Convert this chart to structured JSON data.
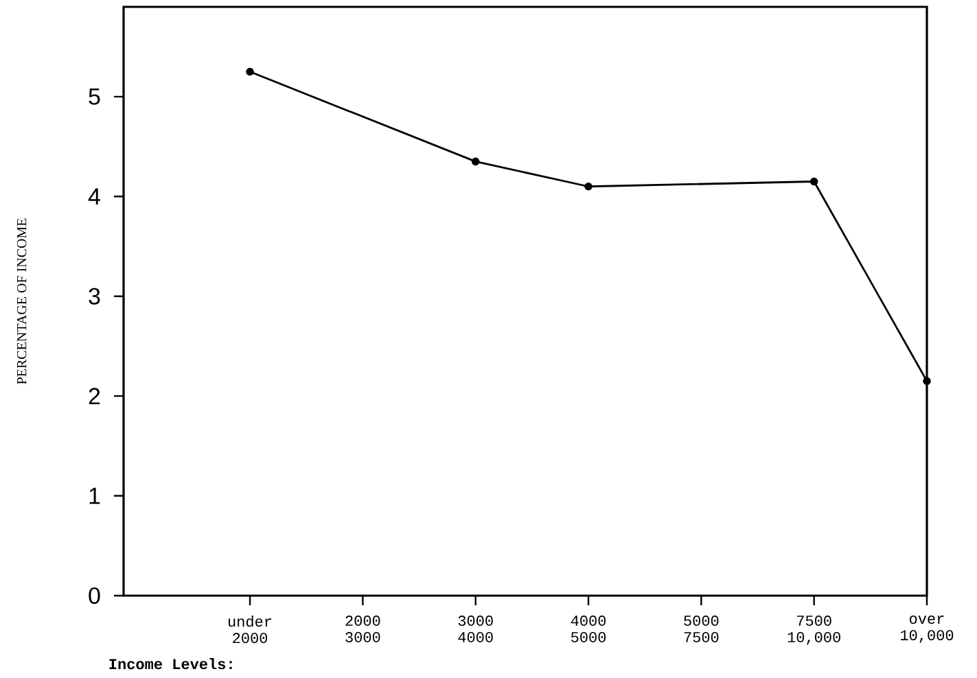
{
  "chart_data": {
    "type": "line",
    "ylabel": "PERCENTAGE OF INCOME",
    "xlabel": "Income Levels:",
    "categories": [
      "under 2000",
      "2000 3000",
      "3000 4000",
      "4000 5000",
      "5000 7500",
      "7500 10,000",
      "over 10,000"
    ],
    "values": [
      5.25,
      null,
      4.35,
      4.1,
      null,
      4.15,
      2.15
    ],
    "color": "#000000",
    "marker": "circle",
    "ylim": [
      0,
      5.9
    ],
    "yticks": [
      0,
      1,
      2,
      3,
      4,
      5
    ]
  }
}
